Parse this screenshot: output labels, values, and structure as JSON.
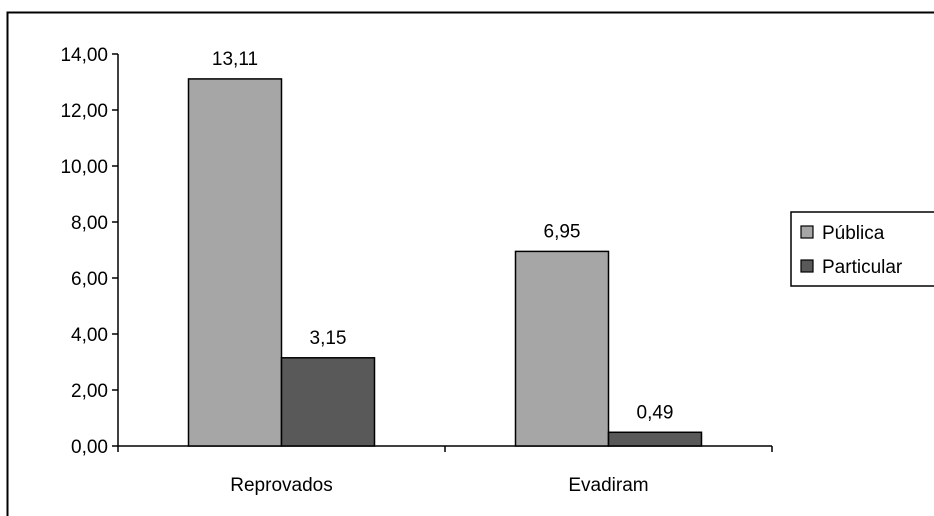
{
  "chart_data": {
    "type": "bar",
    "categories": [
      "Reprovados",
      "Evadiram"
    ],
    "series": [
      {
        "name": "Pública",
        "color": "#a6a6a6",
        "values": [
          13.11,
          6.95
        ],
        "labels": [
          "13,11",
          "6,95"
        ]
      },
      {
        "name": "Particular",
        "color": "#595959",
        "values": [
          3.15,
          0.49
        ],
        "labels": [
          "3,15",
          "0,49"
        ]
      }
    ],
    "yticks": [
      0,
      2,
      4,
      6,
      8,
      10,
      12,
      14
    ],
    "ytick_labels": [
      "0,00",
      "2,00",
      "4,00",
      "6,00",
      "8,00",
      "10,00",
      "12,00",
      "14,00"
    ],
    "ylim": [
      0,
      14
    ],
    "title": "",
    "xlabel": "",
    "ylabel": "",
    "grid": false,
    "legend": "right"
  }
}
